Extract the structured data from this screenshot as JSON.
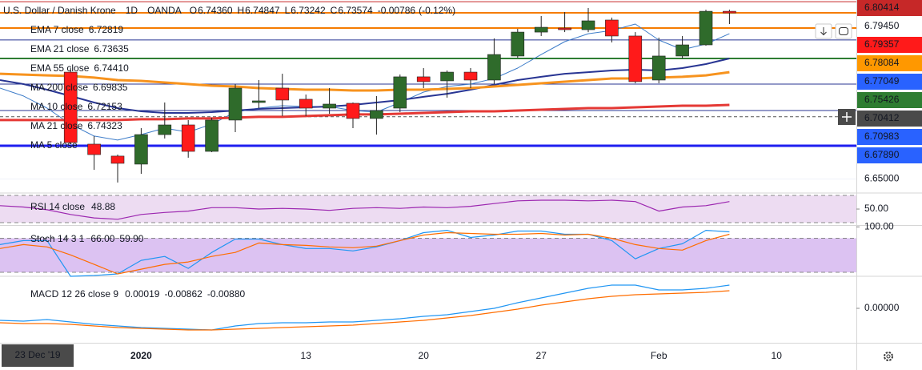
{
  "chart_data": [
    {
      "type": "candlestick",
      "header": {
        "symbol": "U.S. Dollar / Danish Krone",
        "interval": "1D",
        "source": "OANDA",
        "ohlc": [
          {
            "key": "O",
            "value": 6.7436,
            "label": "6.74360"
          },
          {
            "key": "H",
            "value": 6.74847,
            "label": "6.74847"
          },
          {
            "key": "L",
            "value": 6.73242,
            "label": "6.73242"
          },
          {
            "key": "C",
            "value": 6.73574,
            "label": "6.73574"
          }
        ],
        "change": {
          "value": -0.00786,
          "label": "-0.00786"
        },
        "change_percent": {
          "value": -0.12,
          "label": "(-0.12%)"
        }
      },
      "categories": [
        null,
        null,
        null,
        null,
        null,
        null,
        "2020",
        null,
        null,
        null,
        null,
        null,
        null,
        "13",
        null,
        null,
        null,
        null,
        "20",
        null,
        null,
        null,
        null,
        "27",
        null,
        null,
        null,
        null,
        "Feb",
        null,
        null,
        null,
        null,
        "10",
        null,
        null,
        null
      ],
      "crosshair_x_label": "23 Dec '19",
      "open": [
        null,
        null,
        null,
        6.7429,
        6.6803,
        6.6699,
        6.6629,
        6.6886,
        6.697,
        6.674,
        6.7012,
        6.7165,
        6.729,
        6.7193,
        6.7116,
        6.7158,
        6.7026,
        6.7116,
        6.7388,
        6.7353,
        6.7429,
        6.736,
        6.7569,
        6.7777,
        6.7812,
        6.7798,
        6.7882,
        6.7743,
        6.736,
        6.7569,
        6.7666,
        6.7958,
        null,
        null,
        null,
        null,
        null
      ],
      "high": [
        null,
        null,
        null,
        6.7464,
        6.6873,
        6.6712,
        6.6942,
        6.7165,
        6.7012,
        6.7033,
        6.7325,
        6.736,
        6.7415,
        6.7234,
        6.729,
        6.7165,
        6.7221,
        6.7408,
        6.7464,
        6.7443,
        6.7464,
        6.7722,
        6.7805,
        6.7917,
        6.7951,
        6.7986,
        6.7903,
        6.7777,
        6.7729,
        6.7743,
        6.7972,
        6.7972,
        null,
        null,
        null,
        null,
        null
      ],
      "low": [
        null,
        null,
        null,
        6.6803,
        6.658,
        6.6469,
        6.6545,
        6.6852,
        6.6685,
        6.6733,
        6.6907,
        6.7116,
        6.7047,
        6.7047,
        6.7067,
        6.6942,
        6.6886,
        6.7081,
        6.729,
        6.7207,
        6.729,
        6.7325,
        6.7555,
        6.7743,
        6.7777,
        6.7777,
        6.7687,
        6.7332,
        6.7332,
        6.7548,
        6.7659,
        6.7847,
        null,
        null,
        null,
        null,
        null
      ],
      "close": [
        null,
        null,
        null,
        6.6817,
        6.6712,
        6.6636,
        6.6886,
        6.697,
        6.674,
        6.7012,
        6.729,
        6.7179,
        6.7186,
        6.7116,
        6.7151,
        6.7026,
        6.7095,
        6.7388,
        6.7346,
        6.7429,
        6.736,
        6.7582,
        6.7777,
        6.7819,
        6.7798,
        6.7875,
        6.7743,
        6.7346,
        6.7569,
        6.7666,
        6.7958,
        6.7944,
        null,
        null,
        null,
        null,
        null
      ],
      "up_color": "#2f6b2b",
      "down_color": "#ff1a1a",
      "series": [
        {
          "name": "EMA 7 close",
          "color": "#3d7cc9",
          "line_width": 1,
          "last": {
            "value": 6.72819,
            "label": "6.72819"
          },
          "values": [
            6.729,
            6.7221,
            6.7116,
            6.6977,
            6.6873,
            6.6838,
            6.6886,
            6.6942,
            6.6907,
            6.6977,
            6.7081,
            6.7116,
            6.7137,
            6.713,
            6.713,
            6.7095,
            6.7081,
            6.7165,
            6.7255,
            6.7304,
            6.7325,
            6.7374,
            6.7464,
            6.7582,
            6.7694,
            6.7763,
            6.7791,
            6.7847,
            6.7708,
            6.7624,
            6.7673,
            6.7763,
            null,
            null,
            null,
            null,
            null
          ]
        },
        {
          "name": "EMA 21 close",
          "color": "#283593",
          "line_width": 2,
          "last": {
            "value": 6.73635,
            "label": "6.73635"
          },
          "values": [
            6.736,
            6.7325,
            6.7276,
            6.7221,
            6.7165,
            6.7116,
            6.7088,
            6.7074,
            6.7074,
            6.7081,
            6.7095,
            6.7109,
            6.7116,
            6.7123,
            6.713,
            6.7144,
            6.7165,
            6.7186,
            6.7214,
            6.7241,
            6.7276,
            6.7318,
            6.736,
            6.7388,
            6.7415,
            6.7429,
            6.7443,
            6.745,
            6.7443,
            6.7464,
            6.7499,
            6.7548,
            null,
            null,
            null,
            null,
            null
          ]
        },
        {
          "name": "EMA 55 close",
          "color": "#f7931e",
          "line_width": 3,
          "last": {
            "value": 6.7441,
            "label": "6.74410"
          },
          "values": [
            6.7415,
            6.7408,
            6.7401,
            6.7395,
            6.7381,
            6.736,
            6.7353,
            6.7339,
            6.7325,
            6.7311,
            6.7304,
            6.729,
            6.7283,
            6.7276,
            6.7276,
            6.7269,
            6.7269,
            6.7276,
            6.7276,
            6.7283,
            6.729,
            6.7304,
            6.7318,
            6.7332,
            6.7346,
            6.736,
            6.7374,
            6.7374,
            6.7381,
            6.7388,
            6.7401,
            6.7429,
            null,
            null,
            null,
            null,
            null
          ]
        },
        {
          "name": "MA 200 close",
          "color": "#e53935",
          "line_width": 3,
          "last": {
            "value": 6.69835,
            "label": "6.69835"
          },
          "values": [
            6.7012,
            6.7012,
            6.7012,
            6.7012,
            6.7012,
            6.7012,
            6.7019,
            6.7019,
            6.7026,
            6.7026,
            6.7033,
            6.704,
            6.704,
            6.7047,
            6.7054,
            6.7061,
            6.7061,
            6.7067,
            6.7074,
            6.7081,
            6.7088,
            6.7088,
            6.7095,
            6.7102,
            6.7109,
            6.7116,
            6.7116,
            6.7123,
            6.713,
            6.7137,
            6.7137,
            6.7144,
            null,
            null,
            null,
            null,
            null
          ]
        }
      ],
      "legend_extra": [
        {
          "name": "MA 10 close",
          "color": "#283593",
          "last": {
            "value": 6.72153,
            "label": "6.72153"
          }
        },
        {
          "name": "MA 21 close",
          "color": "#43a047",
          "last": {
            "value": 6.74323,
            "label": "6.74323"
          }
        },
        {
          "name": "MA 5 close",
          "color": "#b3c7ef"
        }
      ],
      "ylim": [
        6.6385,
        6.8056
      ],
      "yticks": [
        {
          "value": 6.65,
          "label": "6.65000"
        }
      ],
      "levels": [
        {
          "value": 6.8041,
          "color": "#c62828",
          "width": 1
        },
        {
          "value": 6.7945,
          "color": "#f57c00",
          "width": 2
        },
        {
          "value": 6.7812,
          "color": "#f57c00",
          "width": 2
        },
        {
          "value": 6.7709,
          "color": "#283593",
          "width": 1
        },
        {
          "value": 6.7548,
          "color": "#2e7d32",
          "width": 2
        },
        {
          "value": 6.7325,
          "color": "#283593",
          "width": 1
        },
        {
          "value": 6.7095,
          "color": "#283593",
          "width": 1
        },
        {
          "value": 6.70412,
          "color": "#555555",
          "width": 1,
          "dash": true
        },
        {
          "value": 6.6789,
          "color": "#1e1ef0",
          "width": 3
        }
      ],
      "price_labels": [
        {
          "value": 6.80414,
          "label": "6.80414",
          "color": "#c62828",
          "text_color": "#ffffff"
        },
        {
          "value": 6.7945,
          "label": "6.79450",
          "color": "#ffffff",
          "text_color": "#131722"
        },
        {
          "value": 6.79357,
          "label": "6.79357",
          "color": "#ff1a1a",
          "text_color": "#131722"
        },
        {
          "value": 6.78084,
          "label": "6.78084",
          "color": "#ff9800",
          "text_color": "#131722"
        },
        {
          "value": 6.77049,
          "label": "6.77049",
          "color": "#2962ff",
          "text_color": "#ffffff"
        },
        {
          "value": 6.75426,
          "label": "6.75426",
          "color": "#2e7d32",
          "text_color": "#ffffff"
        },
        {
          "value": 6.70412,
          "label": "6.70412",
          "color": "#4a4a4a",
          "text_color": "#ffffff"
        },
        {
          "value": 6.70983,
          "label": "6.70983",
          "color": "#2962ff",
          "text_color": "#ffffff"
        },
        {
          "value": 6.6789,
          "label": "6.67890",
          "color": "#2962ff",
          "text_color": "#ffffff"
        }
      ]
    },
    {
      "type": "line",
      "title": "RSI 14 close",
      "series": [
        {
          "color": "#9c27b0",
          "last": {
            "value": 48.88,
            "label": "48.88"
          },
          "values": [
            55,
            53,
            49,
            42,
            37,
            35,
            42,
            45,
            47,
            52,
            52,
            50,
            51,
            50,
            48,
            51,
            52,
            51,
            53,
            52,
            54,
            58,
            62,
            63,
            63,
            62,
            63,
            61,
            47,
            53,
            55,
            61,
            null,
            null,
            null,
            null,
            null
          ]
        }
      ],
      "ylim": [
        26.5,
        72.4
      ],
      "yticks": [
        {
          "value": 50,
          "label": "50.00"
        }
      ],
      "bands": [
        30,
        70
      ],
      "band_color": "#eddcf2"
    },
    {
      "type": "line",
      "title": "Stoch 14 3 1",
      "series": [
        {
          "color": "#2196f3",
          "last": {
            "value": 66,
            "label": "66.00"
          },
          "values": [
            68.8,
            75.8,
            75.8,
            13,
            14.4,
            17.2,
            41,
            48,
            27,
            55,
            78.6,
            78.6,
            68.8,
            61.9,
            61.9,
            57.7,
            64.7,
            75.8,
            89.8,
            93.9,
            81.4,
            85.6,
            92.6,
            92.6,
            87,
            87,
            75.8,
            43.7,
            61.9,
            70.2,
            93.9,
            91.2,
            null,
            null,
            null,
            null,
            null
          ]
        },
        {
          "color": "#ff6d00",
          "last": {
            "value": 59.9,
            "label": "59.90"
          },
          "values": [
            61.9,
            68.8,
            64.7,
            50.7,
            34,
            17.2,
            25.6,
            34,
            38.2,
            48,
            55,
            71.6,
            68.8,
            67.4,
            64.7,
            63.3,
            66.1,
            75.8,
            85.6,
            89.8,
            88.4,
            87,
            87,
            88.4,
            85.6,
            87,
            80,
            68.8,
            61.9,
            59.1,
            75.8,
            87,
            null,
            null,
            null,
            null,
            null
          ]
        }
      ],
      "ylim": [
        13,
        101.8
      ],
      "yticks": [
        {
          "value": 100,
          "label": "100.00"
        }
      ],
      "bands": [
        20,
        80
      ],
      "band_color": "#dcc2f2"
    },
    {
      "type": "line",
      "title": "MACD 12 26 close 9",
      "histogram": {
        "color": "#26a69a",
        "last": {
          "value": 0.00019,
          "label": "0.00019"
        }
      },
      "series": [
        {
          "color": "#2196f3",
          "last": {
            "value": -0.00862,
            "label": "-0.00862"
          },
          "values": [
            -0.0075,
            -0.008,
            -0.007,
            -0.0085,
            -0.01,
            -0.011,
            -0.012,
            -0.0125,
            -0.013,
            -0.0135,
            -0.011,
            -0.0095,
            -0.009,
            -0.009,
            -0.0085,
            -0.0085,
            -0.0075,
            -0.0065,
            -0.005,
            -0.004,
            -0.002,
            0,
            0.0035,
            0.0065,
            0.0095,
            0.0125,
            0.0145,
            0.0145,
            0.0115,
            0.0115,
            0.0125,
            0.0145,
            null,
            null,
            null,
            null,
            null
          ]
        },
        {
          "color": "#ff6d00",
          "last": {
            "value": -0.0088,
            "label": "-0.00880"
          },
          "values": [
            -0.009,
            -0.0095,
            -0.0095,
            -0.01,
            -0.011,
            -0.012,
            -0.0125,
            -0.013,
            -0.0135,
            -0.0135,
            -0.013,
            -0.0125,
            -0.012,
            -0.0115,
            -0.011,
            -0.0105,
            -0.0095,
            -0.0085,
            -0.0075,
            -0.006,
            -0.0045,
            -0.0025,
            -0.0005,
            0.002,
            0.004,
            0.006,
            0.0075,
            0.0085,
            0.009,
            0.0095,
            0.01,
            0.011,
            null,
            null,
            null,
            null,
            null
          ]
        }
      ],
      "ylim": [
        -0.0215,
        0.02
      ],
      "yticks": [
        {
          "value": 0,
          "label": "0.00000"
        }
      ]
    }
  ]
}
